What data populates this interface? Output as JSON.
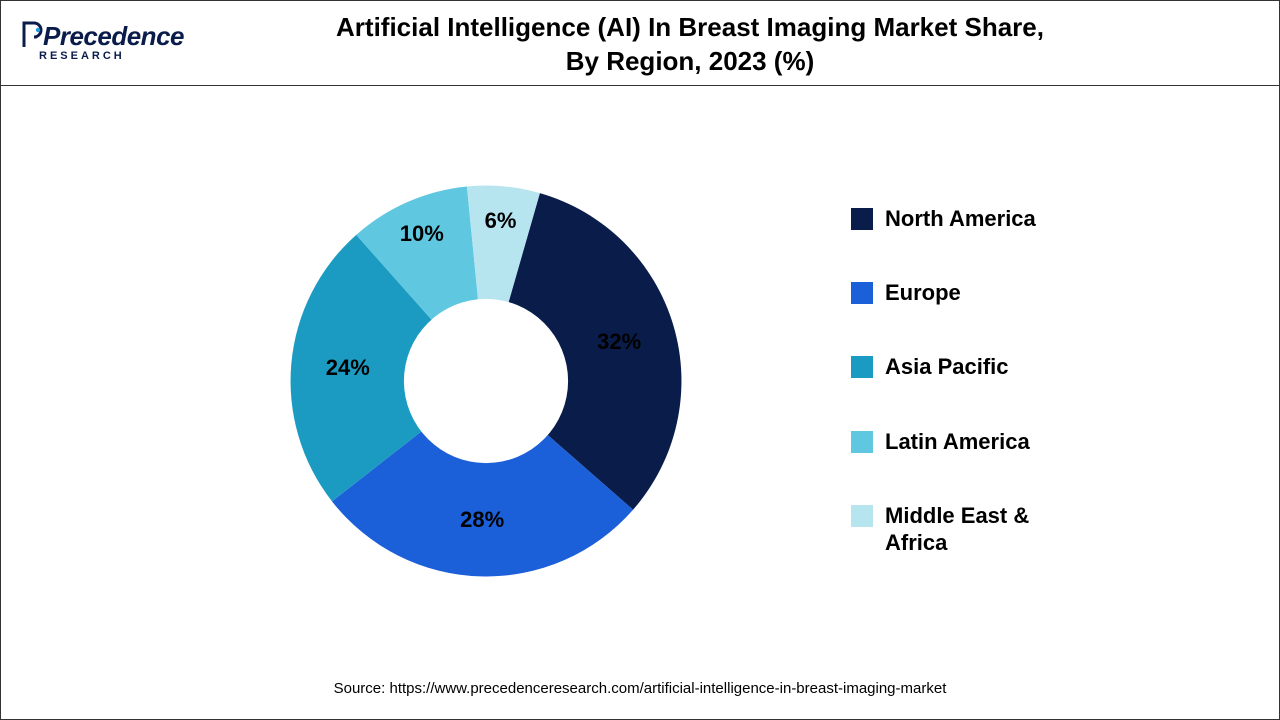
{
  "logo": {
    "main": "Precedence",
    "sub": "RESEARCH"
  },
  "title": {
    "line1": "Artificial Intelligence (AI) In Breast Imaging Market Share,",
    "line2": "By Region, 2023 (%)"
  },
  "chart": {
    "type": "donut",
    "inner_radius_pct": 42,
    "outer_radius_pct": 100,
    "background_color": "#ffffff",
    "start_angle_deg": 16,
    "label_fontsize": 22,
    "label_fontweight": 700,
    "label_color": "#000000",
    "slices": [
      {
        "label": "North America",
        "value": 32,
        "display": "32%",
        "color": "#0a1c4a"
      },
      {
        "label": "Europe",
        "value": 28,
        "display": "28%",
        "color": "#1b5fd9"
      },
      {
        "label": "Asia Pacific",
        "value": 24,
        "display": "24%",
        "color": "#1c9bc2"
      },
      {
        "label": "Latin America",
        "value": 10,
        "display": "10%",
        "color": "#5fc8e0"
      },
      {
        "label": "Middle East & Africa",
        "value": 6,
        "display": "6%",
        "color": "#b6e4ef"
      }
    ]
  },
  "legend": {
    "fontsize": 22,
    "fontweight": 700,
    "swatch_size": 22,
    "gap": 48
  },
  "source": "Source: https://www.precedenceresearch.com/artificial-intelligence-in-breast-imaging-market"
}
